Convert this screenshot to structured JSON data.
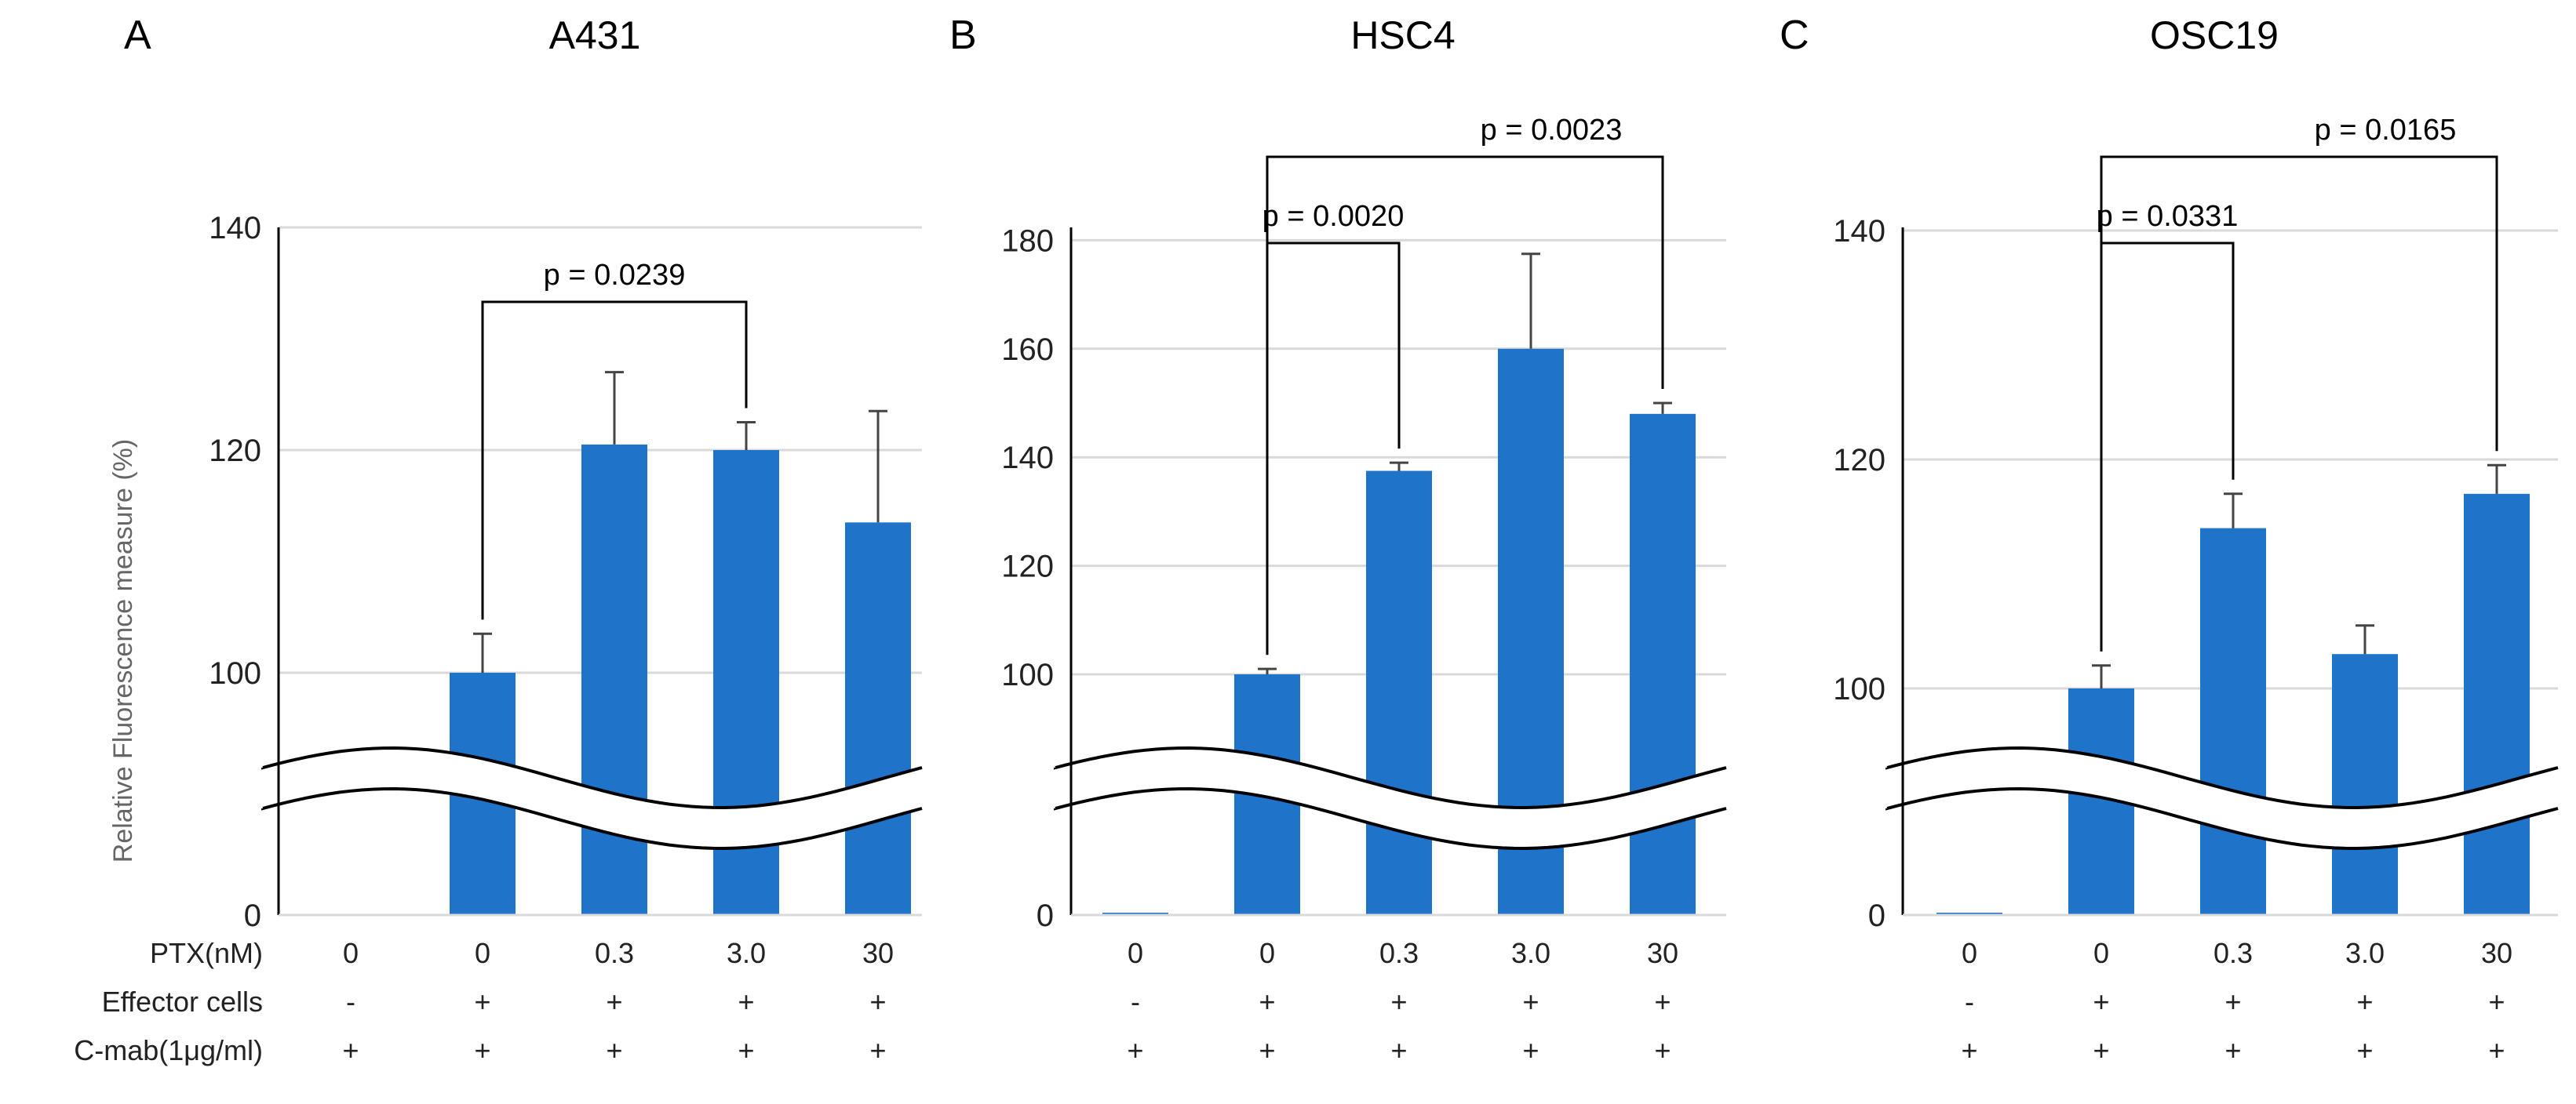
{
  "colors": {
    "bar": "#1f74c9",
    "axis": "#000000",
    "grid": "#d9d9d9",
    "text": "#222222",
    "ylabel": "#666666"
  },
  "row_labels": [
    "PTX(nM)",
    "Effector cells",
    "C-mab(1μg/ml)"
  ],
  "chart_data": [
    {
      "panel": "A",
      "title": "A431",
      "type": "bar",
      "ylabel": "Relative  Fluorescence measure (%)",
      "axis_break": true,
      "yticks": [
        "0",
        "100",
        "120",
        "140"
      ],
      "categories": [
        "0",
        "0",
        "0.3",
        "3.0",
        "30"
      ],
      "effector_cells": [
        "-",
        "+",
        "+",
        "+",
        "+"
      ],
      "c_mab": [
        "+",
        "+",
        "+",
        "+",
        "+"
      ],
      "values": [
        0,
        100,
        120.5,
        120,
        113.5
      ],
      "errors": [
        0,
        3.5,
        6.5,
        2.5,
        10
      ],
      "brackets": [
        {
          "from": 1,
          "to": 3,
          "label": "p =  0.0239"
        }
      ]
    },
    {
      "panel": "B",
      "title": "HSC4",
      "type": "bar",
      "axis_break": true,
      "yticks": [
        "0",
        "100",
        "120",
        "140",
        "160",
        "180"
      ],
      "categories": [
        "0",
        "0",
        "0.3",
        "3.0",
        "30"
      ],
      "effector_cells": [
        "-",
        "+",
        "+",
        "+",
        "+"
      ],
      "c_mab": [
        "+",
        "+",
        "+",
        "+",
        "+"
      ],
      "values": [
        1,
        100,
        137.5,
        160,
        148
      ],
      "errors": [
        0,
        1,
        1.5,
        17.5,
        2
      ],
      "brackets": [
        {
          "from": 1,
          "to": 2,
          "label": "p = 0.0020"
        },
        {
          "from": 1,
          "to": 4,
          "label": "p = 0.0023"
        }
      ]
    },
    {
      "panel": "C",
      "title": "OSC19",
      "type": "bar",
      "axis_break": true,
      "yticks": [
        "0",
        "100",
        "120",
        "140"
      ],
      "categories": [
        "0",
        "0",
        "0.3",
        "3.0",
        "30"
      ],
      "effector_cells": [
        "-",
        "+",
        "+",
        "+",
        "+"
      ],
      "c_mab": [
        "+",
        "+",
        "+",
        "+",
        "+"
      ],
      "values": [
        1,
        100,
        114,
        103,
        117
      ],
      "errors": [
        0,
        2,
        3,
        2.5,
        2.5
      ],
      "brackets": [
        {
          "from": 1,
          "to": 2,
          "label": "p = 0.0331"
        },
        {
          "from": 1,
          "to": 4,
          "label": "p = 0.0165"
        }
      ]
    }
  ]
}
